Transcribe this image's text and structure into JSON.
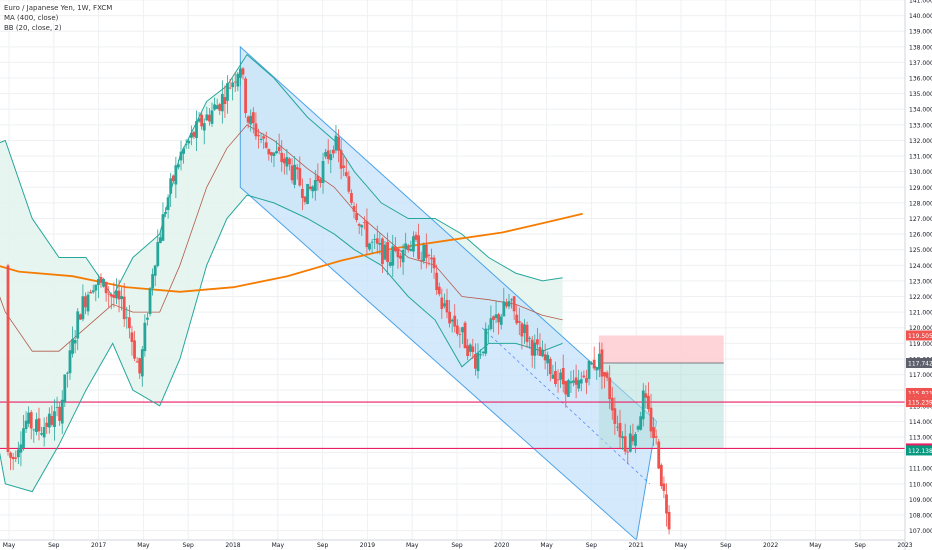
{
  "legend": {
    "symbol": "Euro / Japanese Yen, 1W, FXCM",
    "ma": "MA (400, close)",
    "bb": "BB (20, close, 2)"
  },
  "colors": {
    "up": "#26a69a",
    "down": "#ef5350",
    "ma": "#f57c00",
    "bb": "#26a69a",
    "bb_fill": "#e3f4ee",
    "channel_stroke": "#4da3e8",
    "channel_fill": "#c6e2fb",
    "hline": "#e91e63",
    "stop": "#ffcdd2",
    "target": "#b2dfdb",
    "grid": "#eef0f3"
  },
  "chart_data": {
    "type": "candlestick",
    "y_axis": {
      "ylim": [
        106.4,
        141.0
      ],
      "ticks": [
        "107.000",
        "108.000",
        "109.000",
        "110.000",
        "111.000",
        "112.000",
        "113.000",
        "114.000",
        "115.000",
        "116.000",
        "117.000",
        "118.000",
        "119.000",
        "120.000",
        "121.000",
        "122.000",
        "123.000",
        "124.000",
        "125.000",
        "126.000",
        "127.000",
        "128.000",
        "129.000",
        "130.000",
        "131.000",
        "132.000",
        "133.000",
        "134.000",
        "135.000",
        "136.000",
        "137.000",
        "138.000",
        "139.000",
        "140.000",
        "141.000"
      ]
    },
    "x_axis": {
      "labels": [
        "May",
        "Sep",
        "2017",
        "May",
        "Sep",
        "2018",
        "May",
        "Sep",
        "2019",
        "May",
        "Sep",
        "2020",
        "May",
        "Sep",
        "2021",
        "May",
        "Sep",
        "2022",
        "May",
        "Sep",
        "2023"
      ]
    },
    "price_badges": [
      {
        "text": "119.505",
        "value": 119.505,
        "color": "#ef5350"
      },
      {
        "text": "117.742",
        "value": 117.742,
        "color": "#5d606b"
      },
      {
        "text": "115.821",
        "value": 115.821,
        "color": "#ef5350"
      },
      {
        "text": "3d 11h",
        "value": 115.43,
        "color": "#ef5350"
      },
      {
        "text": "115.239",
        "value": 115.239,
        "color": "#ef5350"
      },
      {
        "text": "112.268",
        "value": 112.268,
        "color": "#e91e63"
      },
      {
        "text": "112.138",
        "value": 112.138,
        "color": "#089981"
      }
    ],
    "horizontal_lines": [
      115.239,
      112.268
    ],
    "position_box": {
      "entry": 117.742,
      "stop": 119.505,
      "target": 112.268
    },
    "channel": {
      "upper_start": [
        2018.05,
        138.0
      ],
      "upper_end": [
        2021.15,
        114.0
      ],
      "lower_start": [
        2018.05,
        129.0
      ],
      "lower_end": [
        2021.0,
        106.4
      ]
    },
    "ma_400": [
      [
        2016.0,
        124.6
      ],
      [
        2016.4,
        123.6
      ],
      [
        2016.8,
        123.3
      ],
      [
        2017.2,
        122.6
      ],
      [
        2017.6,
        122.3
      ],
      [
        2018.0,
        122.6
      ],
      [
        2018.4,
        123.3
      ],
      [
        2018.8,
        124.3
      ],
      [
        2019.2,
        125.1
      ],
      [
        2019.6,
        125.6
      ],
      [
        2020.0,
        126.1
      ],
      [
        2020.3,
        126.7
      ],
      [
        2020.6,
        127.3
      ]
    ],
    "bb_upper": [
      [
        2016.0,
        134.0
      ],
      [
        2016.15,
        131.5
      ],
      [
        2016.3,
        132.0
      ],
      [
        2016.5,
        127.0
      ],
      [
        2016.7,
        124.5
      ],
      [
        2016.9,
        124.5
      ],
      [
        2017.1,
        122.0
      ],
      [
        2017.25,
        124.5
      ],
      [
        2017.45,
        126.0
      ],
      [
        2017.6,
        131.0
      ],
      [
        2017.8,
        134.5
      ],
      [
        2017.95,
        135.5
      ],
      [
        2018.1,
        137.5
      ],
      [
        2018.3,
        136.0
      ],
      [
        2018.55,
        133.5
      ],
      [
        2018.75,
        132.0
      ],
      [
        2018.9,
        130.0
      ],
      [
        2019.1,
        128.0
      ],
      [
        2019.3,
        127.0
      ],
      [
        2019.5,
        127.0
      ],
      [
        2019.7,
        126.0
      ],
      [
        2019.9,
        124.5
      ],
      [
        2020.1,
        123.5
      ],
      [
        2020.3,
        123.0
      ],
      [
        2020.45,
        123.2
      ]
    ],
    "bb_lower": [
      [
        2016.0,
        123.0
      ],
      [
        2016.15,
        117.0
      ],
      [
        2016.3,
        110.0
      ],
      [
        2016.5,
        109.5
      ],
      [
        2016.7,
        112.5
      ],
      [
        2016.9,
        116.0
      ],
      [
        2017.1,
        119.0
      ],
      [
        2017.25,
        116.0
      ],
      [
        2017.45,
        115.0
      ],
      [
        2017.6,
        118.0
      ],
      [
        2017.8,
        124.0
      ],
      [
        2017.95,
        127.0
      ],
      [
        2018.1,
        128.5
      ],
      [
        2018.3,
        128.0
      ],
      [
        2018.55,
        127.0
      ],
      [
        2018.75,
        126.0
      ],
      [
        2018.9,
        125.0
      ],
      [
        2019.1,
        124.0
      ],
      [
        2019.3,
        122.0
      ],
      [
        2019.5,
        120.5
      ],
      [
        2019.7,
        117.5
      ],
      [
        2019.9,
        119.0
      ],
      [
        2020.1,
        119.0
      ],
      [
        2020.3,
        118.5
      ],
      [
        2020.45,
        119.0
      ]
    ],
    "bb_mid": [
      [
        2016.0,
        128.5
      ],
      [
        2016.15,
        124.5
      ],
      [
        2016.3,
        121.0
      ],
      [
        2016.5,
        118.5
      ],
      [
        2016.7,
        118.5
      ],
      [
        2016.9,
        120.0
      ],
      [
        2017.1,
        121.5
      ],
      [
        2017.25,
        121.0
      ],
      [
        2017.45,
        121.0
      ],
      [
        2017.6,
        124.0
      ],
      [
        2017.8,
        129.0
      ],
      [
        2017.95,
        131.5
      ],
      [
        2018.1,
        133.0
      ],
      [
        2018.3,
        132.0
      ],
      [
        2018.55,
        130.2
      ],
      [
        2018.75,
        129.0
      ],
      [
        2018.9,
        127.5
      ],
      [
        2019.1,
        126.0
      ],
      [
        2019.3,
        124.5
      ],
      [
        2019.5,
        124.0
      ],
      [
        2019.7,
        122.0
      ],
      [
        2019.9,
        121.8
      ],
      [
        2020.1,
        121.5
      ],
      [
        2020.3,
        120.8
      ],
      [
        2020.45,
        120.5
      ]
    ],
    "price_path": [
      [
        2016.0,
        124.0
      ],
      [
        2016.12,
        120.0
      ],
      [
        2016.25,
        113.0
      ],
      [
        2016.35,
        111.5
      ],
      [
        2016.45,
        114.0
      ],
      [
        2016.55,
        113.5
      ],
      [
        2016.7,
        114.5
      ],
      [
        2016.85,
        121.0
      ],
      [
        2016.95,
        123.0
      ],
      [
        2017.05,
        122.5
      ],
      [
        2017.2,
        121.0
      ],
      [
        2017.3,
        117.0
      ],
      [
        2017.4,
        124.0
      ],
      [
        2017.5,
        128.0
      ],
      [
        2017.6,
        131.0
      ],
      [
        2017.75,
        133.0
      ],
      [
        2017.9,
        134.5
      ],
      [
        2018.0,
        136.0
      ],
      [
        2018.05,
        137.0
      ],
      [
        2018.1,
        133.5
      ],
      [
        2018.25,
        131.5
      ],
      [
        2018.4,
        130.5
      ],
      [
        2018.55,
        128.5
      ],
      [
        2018.65,
        130.0
      ],
      [
        2018.75,
        132.0
      ],
      [
        2018.85,
        129.0
      ],
      [
        2019.0,
        125.5
      ],
      [
        2019.15,
        124.5
      ],
      [
        2019.3,
        125.5
      ],
      [
        2019.45,
        124.5
      ],
      [
        2019.55,
        121.5
      ],
      [
        2019.7,
        119.5
      ],
      [
        2019.8,
        118.0
      ],
      [
        2019.95,
        120.5
      ],
      [
        2020.05,
        121.5
      ],
      [
        2020.15,
        120.0
      ],
      [
        2020.25,
        118.5
      ],
      [
        2020.35,
        117.5
      ],
      [
        2020.45,
        116.5
      ],
      [
        2020.55,
        116.0
      ],
      [
        2020.65,
        117.5
      ],
      [
        2020.72,
        118.0
      ],
      [
        2020.78,
        116.5
      ],
      [
        2020.85,
        114.0
      ],
      [
        2020.92,
        112.5
      ],
      [
        2021.0,
        113.5
      ],
      [
        2021.05,
        115.5
      ],
      [
        2021.1,
        114.0
      ],
      [
        2021.15,
        112.5
      ],
      [
        2021.2,
        109.5
      ],
      [
        2021.25,
        107.5
      ]
    ]
  }
}
